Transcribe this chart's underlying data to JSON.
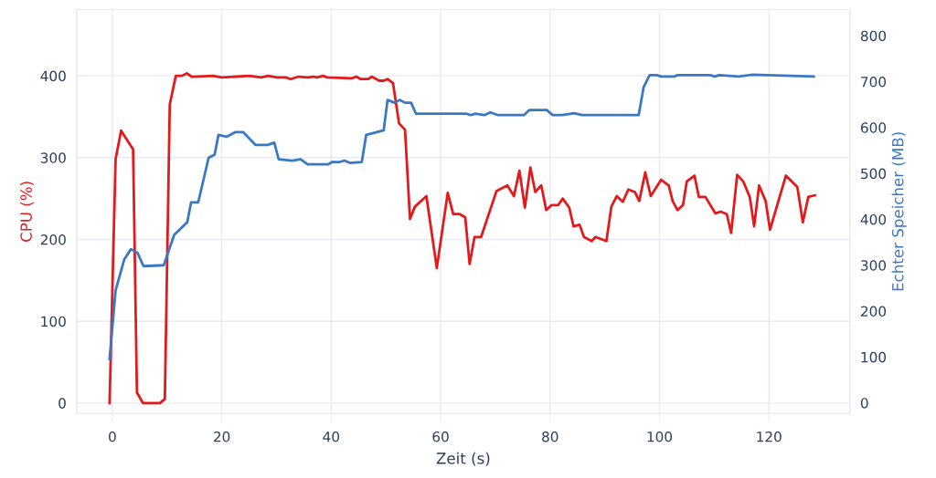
{
  "chart_data": {
    "type": "line",
    "xlabel": "Zeit (s)",
    "ylabel": "CPU (%)",
    "y2label": "Echter Speicher (MB)",
    "xlim": [
      -6.5,
      134.8
    ],
    "xticks": [
      0,
      20,
      40,
      60,
      80,
      100,
      120
    ],
    "ylim": [
      -12.7,
      481
    ],
    "yticks": [
      0,
      100,
      200,
      300,
      400
    ],
    "y2lim": [
      -23,
      857
    ],
    "y2ticks": [
      0,
      100,
      200,
      300,
      400,
      500,
      600,
      700,
      800
    ],
    "grid": true,
    "marker": "none",
    "line_style": "solid",
    "series": [
      {
        "color": "#e31a1c",
        "axis": "y",
        "x": [
          -0.5,
          0.6,
          1.6,
          3.8,
          4.5,
          5.6,
          8.7,
          9.6,
          10.5,
          11.6,
          12.7,
          13.6,
          14.5,
          18.4,
          20,
          25,
          27.2,
          28.5,
          30.1,
          31.7,
          32.6,
          34,
          35.7,
          36.8,
          37.4,
          38.5,
          39.3,
          43.8,
          44.6,
          45.4,
          46.8,
          47.4,
          48.8,
          49.6,
          50.3,
          51.3,
          52.4,
          53.5,
          54.4,
          55.3,
          57.4,
          59.3,
          61.3,
          62.3,
          63.5,
          64.5,
          65.3,
          66.2,
          67.4,
          70.2,
          72.2,
          73.4,
          74.4,
          75.4,
          76.4,
          77.3,
          78.4,
          79.3,
          80.3,
          81.5,
          82.3,
          83.5,
          84.3,
          85.4,
          86.2,
          87.6,
          88.3,
          90.3,
          91.2,
          92.2,
          93.3,
          94.3,
          95.5,
          96.3,
          97.4,
          98.4,
          100.3,
          101.7,
          102.4,
          103.3,
          104.3,
          105,
          106.4,
          107.2,
          108.4,
          110.2,
          111.2,
          112.3,
          113.1,
          114.2,
          115.3,
          116.5,
          117.3,
          118.2,
          119.4,
          120.2,
          123.1,
          125.2,
          126.2,
          127.2,
          128.4
        ],
        "values": [
          0,
          298,
          333,
          310,
          13,
          0,
          0,
          5,
          365,
          400,
          400,
          403,
          399,
          400,
          398,
          400,
          398,
          400,
          398,
          398,
          396,
          399,
          398,
          399,
          398,
          400,
          398,
          397,
          399,
          396,
          396,
          399,
          394,
          394,
          396,
          391,
          342,
          334,
          225,
          240,
          253,
          165,
          257,
          231,
          231,
          227,
          170,
          203,
          203,
          259,
          266,
          253,
          284,
          239,
          288,
          258,
          266,
          236,
          242,
          242,
          250,
          239,
          216,
          218,
          203,
          198,
          203,
          198,
          240,
          253,
          246,
          261,
          258,
          247,
          282,
          253,
          273,
          266,
          247,
          236,
          242,
          271,
          278,
          252,
          252,
          232,
          234,
          231,
          208,
          279,
          271,
          252,
          216,
          266,
          247,
          212,
          278,
          264,
          221,
          252,
          254
        ]
      },
      {
        "color": "#3a78c3",
        "axis": "y2",
        "x": [
          -0.5,
          0.6,
          2.2,
          3.4,
          4.6,
          5.7,
          9.4,
          11.3,
          13.7,
          14.4,
          15.7,
          17.6,
          18.7,
          19.4,
          20.9,
          22.5,
          23.9,
          26.2,
          28.4,
          29.6,
          30.4,
          32.9,
          34.4,
          35.7,
          39.5,
          40.2,
          41.6,
          42.4,
          43.4,
          45.6,
          46.4,
          49.6,
          50.3,
          51.6,
          52.5,
          53.5,
          54.6,
          55.5,
          64.7,
          65.5,
          66.3,
          68,
          69.1,
          70.5,
          75.2,
          76.2,
          79.4,
          80.5,
          82.2,
          84.4,
          85.9,
          96.2,
          97.1,
          98.2,
          99.5,
          100.3,
          102.7,
          103.2,
          109.3,
          110.1,
          110.9,
          114.5,
          117,
          128.2
        ],
        "values": [
          96,
          245,
          313,
          335,
          327,
          298,
          300,
          366,
          394,
          437,
          437,
          534,
          541,
          584,
          580,
          590,
          590,
          562,
          562,
          567,
          531,
          528,
          531,
          520,
          520,
          525,
          525,
          528,
          523,
          525,
          584,
          594,
          660,
          654,
          660,
          654,
          654,
          630,
          630,
          627,
          630,
          627,
          633,
          627,
          627,
          638,
          638,
          627,
          627,
          631,
          627,
          627,
          688,
          714,
          714,
          711,
          711,
          714,
          714,
          711,
          714,
          711,
          715,
          711
        ]
      }
    ]
  }
}
